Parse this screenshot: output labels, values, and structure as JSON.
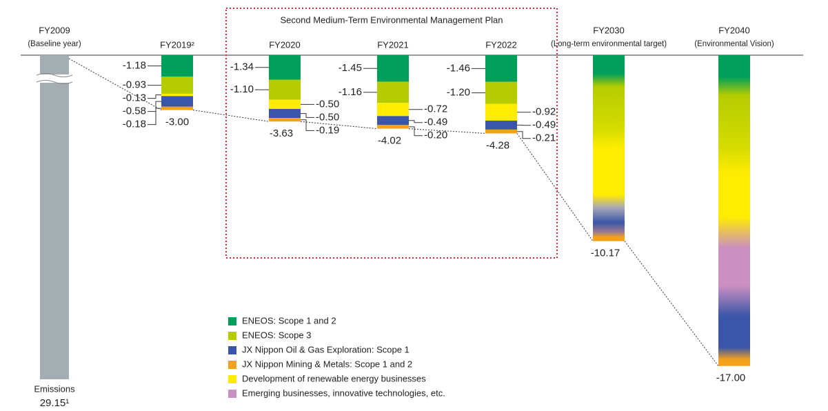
{
  "chart_data": {
    "type": "bar",
    "stacked": true,
    "frame_label": "Second Medium-Term Environmental Management Plan",
    "framed_categories": [
      2,
      4
    ],
    "categories": [
      "FY2009",
      "FY2019²",
      "FY2020",
      "FY2021",
      "FY2022",
      "FY2030",
      "FY2040"
    ],
    "category_notes": [
      "(Baseline year)",
      null,
      null,
      null,
      null,
      "(Long-term environmental target)",
      "(Environmental Vision)"
    ],
    "baseline_label": "Emissions",
    "baseline_value": 29.15,
    "baseline_value_label": "29.15¹",
    "baseline_color": "#a3adb2",
    "ylim": [
      -17.5,
      0
    ],
    "series": [
      {
        "name": "ENEOS: Scope 1 and 2",
        "color": "#00a05a",
        "values": [
          null,
          -1.18,
          -1.34,
          -1.45,
          -1.46,
          null,
          null
        ],
        "value_labels": [
          null,
          "-1.18",
          "-1.34",
          "-1.45",
          "-1.46",
          null,
          null
        ]
      },
      {
        "name": "ENEOS: Scope 3",
        "color": "#b5cc00",
        "values": [
          null,
          -0.93,
          -1.1,
          -1.16,
          -1.2,
          null,
          null
        ],
        "value_labels": [
          null,
          "-0.93",
          "-1.10",
          "-1.16",
          "-1.20",
          null,
          null
        ]
      },
      {
        "name": "Development of renewable energy businesses",
        "color": "#ffec00",
        "values": [
          null,
          -0.13,
          -0.5,
          -0.72,
          -0.92,
          null,
          null
        ],
        "value_labels": [
          null,
          "-0.13",
          "-0.50",
          "-0.72",
          "-0.92",
          null,
          null
        ]
      },
      {
        "name": "JX Nippon Oil & Gas Exploration: Scope 1",
        "color": "#3b56a8",
        "values": [
          null,
          -0.58,
          -0.5,
          -0.49,
          -0.49,
          null,
          null
        ],
        "value_labels": [
          null,
          "-0.58",
          "-0.50",
          "-0.49",
          "-0.49",
          null,
          null
        ]
      },
      {
        "name": "JX Nippon Mining & Metals: Scope 1 and 2",
        "color": "#f5a21b",
        "values": [
          null,
          -0.18,
          -0.19,
          -0.2,
          -0.21,
          null,
          null
        ],
        "value_labels": [
          null,
          "-0.18",
          "-0.19",
          "-0.20",
          "-0.21",
          null,
          null
        ]
      },
      {
        "name": "Emerging businesses, innovative technologies, etc.",
        "color": "#cc8fc2",
        "values": [
          null,
          null,
          null,
          null,
          null,
          null,
          null
        ],
        "value_labels": [
          null,
          null,
          null,
          null,
          null,
          null,
          null
        ]
      }
    ],
    "legend_order": [
      0,
      1,
      3,
      4,
      2,
      5
    ],
    "totals": [
      null,
      -3,
      -3.63,
      -4.02,
      -4.28,
      -10.17,
      -17
    ],
    "total_labels": [
      null,
      "-3.00",
      "-3.63",
      "-4.02",
      "-4.28",
      "-10.17",
      "-17.00"
    ]
  }
}
